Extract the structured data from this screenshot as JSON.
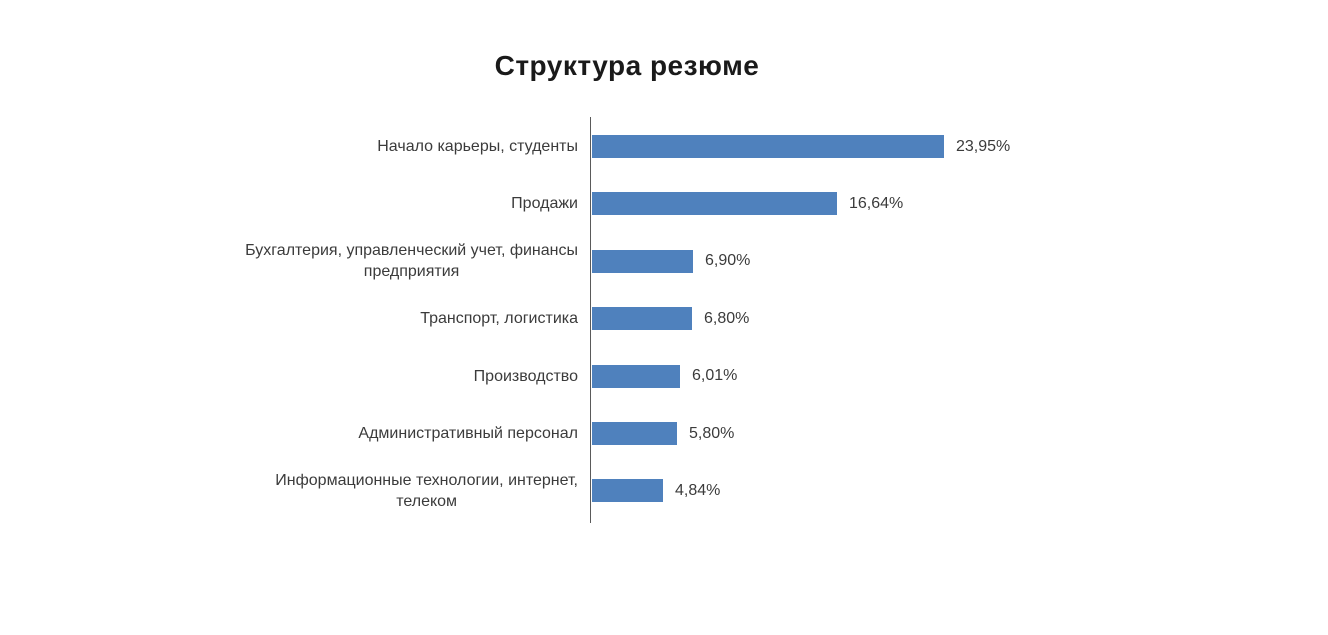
{
  "chart_data": {
    "type": "bar",
    "orientation": "horizontal",
    "title": "Структура резюме",
    "categories": [
      "Начало карьеры, студенты",
      "Продажи",
      "Бухгалтерия, управленческий учет, финансы\nпредприятия",
      "Транспорт, логистика",
      "Производство",
      "Административный персонал",
      "Информационные технологии, интернет,\nтелеком"
    ],
    "values": [
      23.95,
      16.64,
      6.9,
      6.8,
      6.01,
      5.8,
      4.84
    ],
    "value_labels": [
      "23,95%",
      "16,64%",
      "6,90%",
      "6,80%",
      "6,01%",
      "5,80%",
      "4,84%"
    ],
    "xlabel": "",
    "ylabel": "",
    "xlim": [
      0,
      25
    ],
    "grid": false,
    "legend": false,
    "bar_color": "#4F81BD",
    "axis_color": "#5a5a5a",
    "text_color": "#3b3b3b",
    "title_color": "#1a1a1a",
    "background_color": "#ffffff"
  }
}
